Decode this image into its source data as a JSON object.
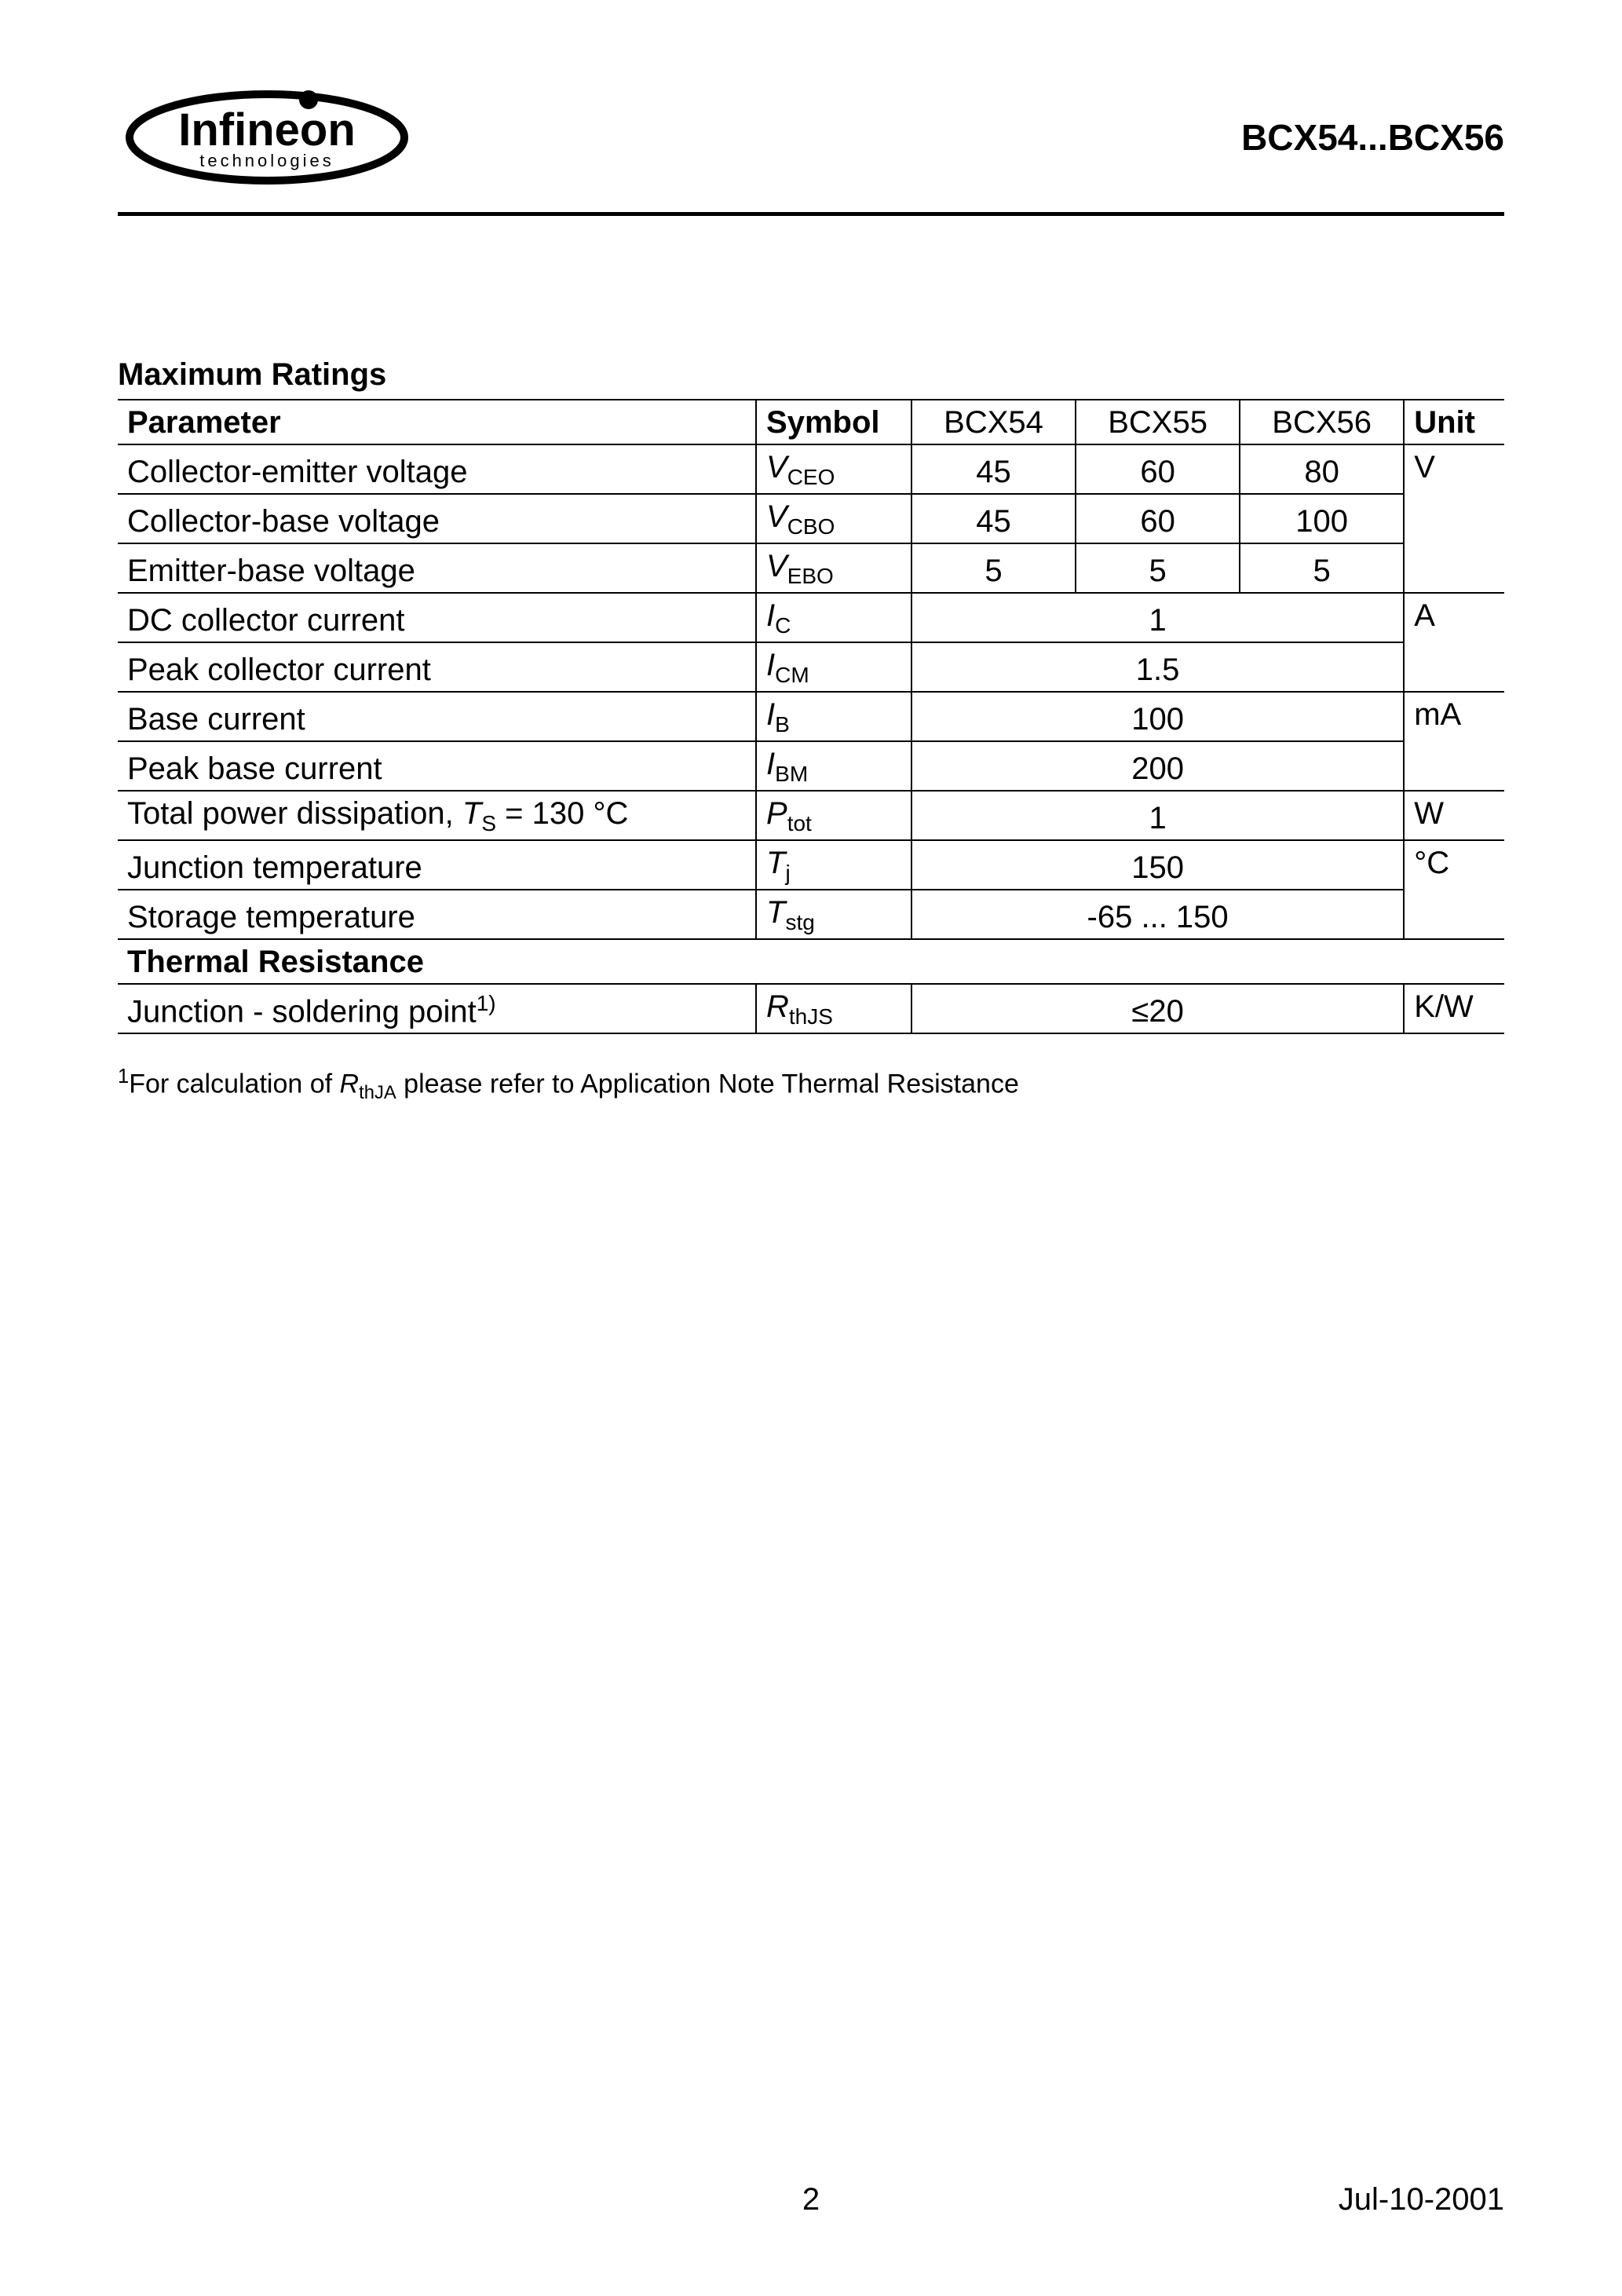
{
  "header": {
    "logo_company": "Infineon",
    "logo_tagline": "technologies",
    "part_title": "BCX54...BCX56"
  },
  "section1_title": "Maximum Ratings",
  "columns": {
    "parameter": "Parameter",
    "symbol": "Symbol",
    "c1": "BCX54",
    "c2": "BCX55",
    "c3": "BCX56",
    "unit": "Unit"
  },
  "rows": [
    {
      "param": "Collector-emitter voltage",
      "sym_main": "V",
      "sym_sub": "CEO",
      "v1": "45",
      "v2": "60",
      "v3": "80",
      "unit": "V",
      "unit_span": 3
    },
    {
      "param": "Collector-base voltage",
      "sym_main": "V",
      "sym_sub": "CBO",
      "v1": "45",
      "v2": "60",
      "v3": "100"
    },
    {
      "param": "Emitter-base voltage",
      "sym_main": "V",
      "sym_sub": "EBO",
      "v1": "5",
      "v2": "5",
      "v3": "5"
    },
    {
      "param": "DC collector current",
      "sym_main": "I",
      "sym_sub": "C",
      "merged": "1",
      "unit": "A",
      "unit_span": 2
    },
    {
      "param": "Peak collector current",
      "sym_main": "I",
      "sym_sub": "CM",
      "merged": "1.5"
    },
    {
      "param": "Base current",
      "sym_main": "I",
      "sym_sub": "B",
      "merged": "100",
      "unit": "mA",
      "unit_span": 2
    },
    {
      "param": "Peak base current",
      "sym_main": "I",
      "sym_sub": "BM",
      "merged": "200"
    },
    {
      "param_html": "Total power dissipation, <span class=\"symbol-main\">T</span><span class=\"symbol-sub\">S</span> = 130 °C",
      "sym_main": "P",
      "sym_sub": "tot",
      "merged": "1",
      "unit": "W",
      "unit_span": 1
    },
    {
      "param": "Junction temperature",
      "sym_main": "T",
      "sym_sub": "j",
      "merged": "150",
      "unit": "°C",
      "unit_span": 2
    },
    {
      "param": "Storage temperature",
      "sym_main": "T",
      "sym_sub": "stg",
      "merged": "-65 ... 150"
    }
  ],
  "section2_title": "Thermal Resistance",
  "rows2": [
    {
      "param_html": "Junction - soldering point<span class=\"symbol-sup\">1)</span>",
      "sym_main": "R",
      "sym_sub": "thJS",
      "merged": "≤20",
      "unit": "K/W",
      "unit_span": 1
    }
  ],
  "footnote": {
    "num": "1",
    "text_pre": "For calculation of ",
    "sym_main": "R",
    "sym_sub": "thJA",
    "text_post": " please refer to Application Note Thermal Resistance"
  },
  "footer": {
    "page": "2",
    "date": "Jul-10-2001"
  },
  "colors": {
    "text": "#000000",
    "bg": "#ffffff",
    "rule": "#000000"
  }
}
